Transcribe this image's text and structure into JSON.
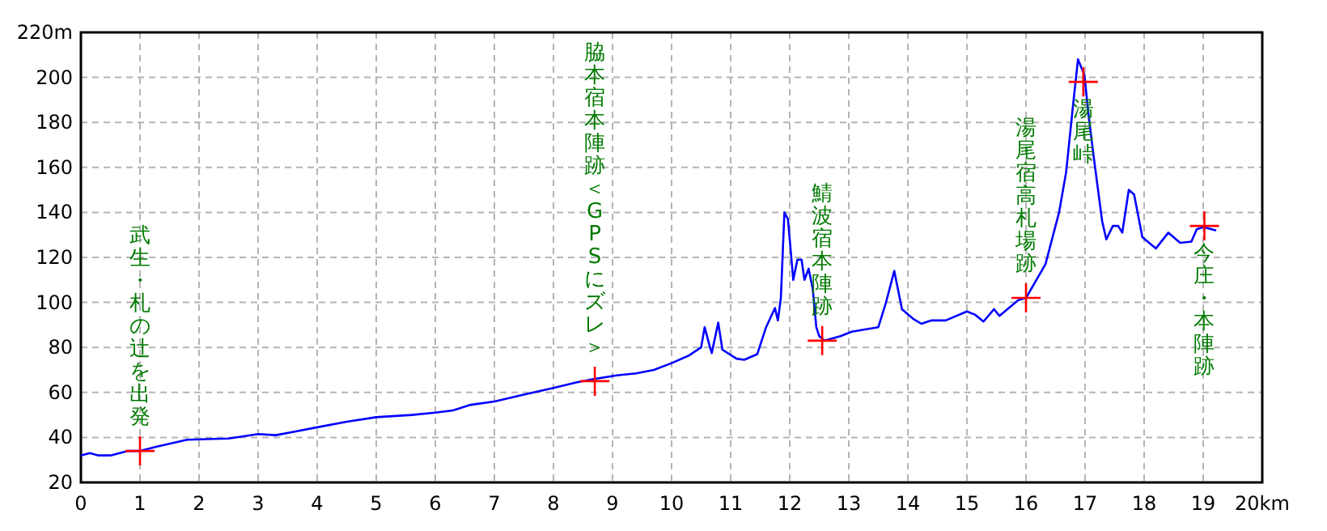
{
  "chart_data": {
    "type": "line",
    "xlim": [
      0,
      20
    ],
    "ylim": [
      20,
      220
    ],
    "xticks": [
      0,
      1,
      2,
      3,
      4,
      5,
      6,
      7,
      8,
      9,
      10,
      11,
      12,
      13,
      14,
      15,
      16,
      17,
      18,
      19,
      {
        "value": 20,
        "label": "20km"
      }
    ],
    "yticks": [
      20,
      40,
      60,
      80,
      100,
      120,
      140,
      160,
      180,
      200,
      {
        "value": 220,
        "label": "220m"
      }
    ],
    "grid": true,
    "series": [
      {
        "color": "#0000ff",
        "marker": "none",
        "x": [
          0,
          0.15,
          0.3,
          0.5,
          0.8,
          1.0,
          1.3,
          1.8,
          2.5,
          3.0,
          3.3,
          3.6,
          4.0,
          4.5,
          5.0,
          5.6,
          6.0,
          6.3,
          6.6,
          7.0,
          7.5,
          8.0,
          8.4,
          8.7,
          9.05,
          9.4,
          9.7,
          10.0,
          10.3,
          10.5,
          10.56,
          10.64,
          10.68,
          10.79,
          10.86,
          11.1,
          11.23,
          11.45,
          11.6,
          11.75,
          11.8,
          11.85,
          11.91,
          11.97,
          12.06,
          12.13,
          12.2,
          12.25,
          12.32,
          12.39,
          12.45,
          12.5,
          12.59,
          12.86,
          13.05,
          13.5,
          13.63,
          13.77,
          13.9,
          14.1,
          14.23,
          14.4,
          14.64,
          15.0,
          15.14,
          15.28,
          15.46,
          15.55,
          15.87,
          16.0,
          16.33,
          16.56,
          16.68,
          16.79,
          16.88,
          16.99,
          17.06,
          17.15,
          17.29,
          17.36,
          17.47,
          17.56,
          17.63,
          17.74,
          17.83,
          17.97,
          18.2,
          18.41,
          18.61,
          18.8,
          18.89,
          19.0,
          19.22
        ],
        "values": [
          32,
          33,
          32,
          32,
          34,
          34,
          36,
          39,
          39.5,
          41.5,
          41,
          42.5,
          44.5,
          47,
          49,
          50,
          51,
          52,
          54.5,
          56,
          59,
          62,
          64.5,
          66,
          67.5,
          68.5,
          70,
          73,
          76.5,
          80,
          89,
          81,
          77.5,
          91,
          79,
          75,
          74.5,
          77,
          89,
          97.5,
          92,
          102,
          140,
          137,
          110,
          119,
          119,
          110,
          115,
          106,
          89,
          85,
          83,
          85,
          87,
          89,
          100,
          114,
          97,
          92.5,
          90.5,
          92,
          92,
          96,
          94.5,
          91.5,
          97,
          94,
          101,
          102,
          117,
          140,
          158,
          186,
          208,
          201,
          183,
          164,
          136,
          128,
          134,
          134,
          131,
          150,
          148,
          129,
          124,
          131,
          126.5,
          127,
          132.5,
          133.5,
          132
        ]
      },
      {
        "type": "scatter",
        "color": "#ff0000",
        "marker": "cross",
        "x": [
          1.0,
          8.7,
          12.55,
          16.0,
          16.97,
          19.02
        ],
        "values": [
          34,
          65,
          83,
          102,
          198,
          134
        ]
      }
    ],
    "annotations": [
      "武生・札の辻を出発",
      "脇本宿本陣跡＜GPSにズレ＞",
      {
        "text": "鯖波宿本陣跡",
        "x": 12.55,
        "y": 83
      },
      {
        "text": "湯尾宿高札場跡",
        "x": 16.0,
        "y": 102
      },
      {
        "text": "湯尾峠",
        "x": 16.97,
        "y": 198
      },
      {
        "text": "今庄・本陣跡",
        "x": 19.02,
        "y": 134
      }
    ]
  }
}
